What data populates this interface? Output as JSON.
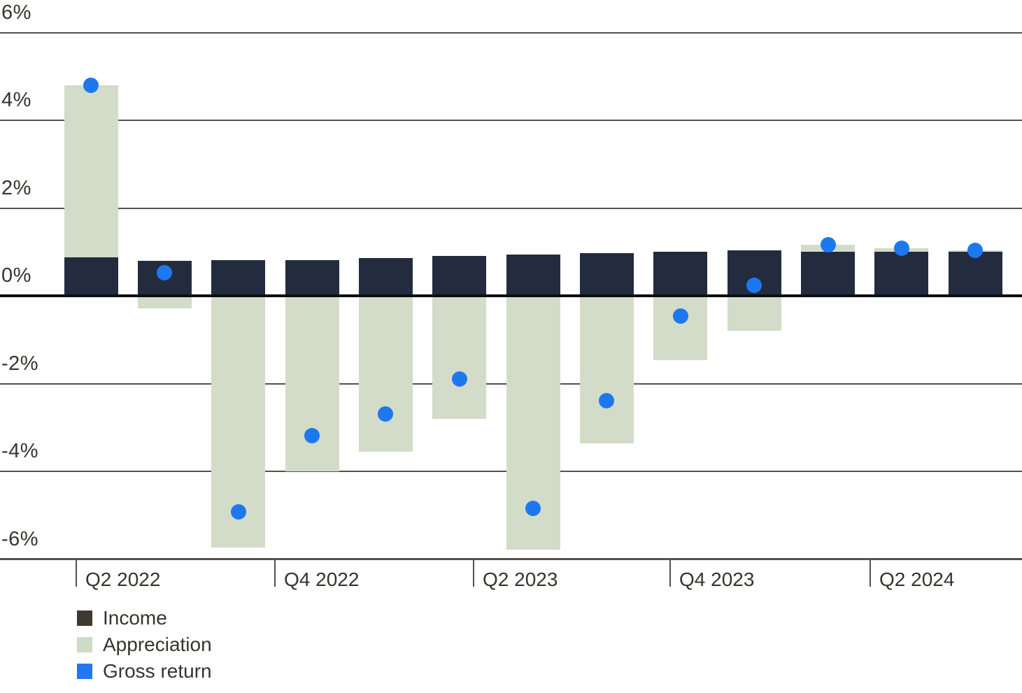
{
  "chart_data": {
    "type": "bar",
    "variant": "stacked-columns-with-scatter-overlay",
    "title": "",
    "xlabel": "",
    "ylabel": "",
    "x_tick_labels": [
      "Q2 2022",
      "Q4 2022",
      "Q2 2023",
      "Q4 2023",
      "Q2 2024"
    ],
    "y_tick_labels": [
      "6%",
      "4%",
      "2%",
      "0%",
      "-2%",
      "-4%",
      "-6%"
    ],
    "y_tick_values": [
      6,
      4,
      2,
      0,
      -2,
      -4,
      -6
    ],
    "ylim": [
      -6.0,
      6.7
    ],
    "bar_count": 13,
    "grid": "horizontal",
    "legend_position": "bottom-left",
    "series": [
      {
        "name": "Income",
        "type": "bar",
        "color": "#232c3e",
        "values": [
          0.87,
          0.8,
          0.81,
          0.82,
          0.86,
          0.91,
          0.94,
          0.98,
          1.01,
          1.03,
          1.01,
          1.01,
          1.01
        ]
      },
      {
        "name": "Appreciation",
        "type": "bar",
        "stacked_on": "Income",
        "color": "#d2dcc9",
        "values": [
          3.93,
          -0.28,
          -5.74,
          -4.0,
          -3.56,
          -2.81,
          -5.79,
          -3.37,
          -1.47,
          -0.79,
          0.15,
          0.07,
          0.02
        ]
      },
      {
        "name": "Gross return",
        "type": "scatter",
        "color": "#1d78f0",
        "values": [
          4.8,
          0.52,
          -4.93,
          -3.18,
          -2.7,
          -1.9,
          -4.85,
          -2.39,
          -0.46,
          0.24,
          1.16,
          1.08,
          1.03
        ]
      }
    ]
  },
  "legend": {
    "items": [
      {
        "label": "Income",
        "color": "#3e3a33",
        "shape": "square"
      },
      {
        "label": "Appreciation",
        "color": "#cddcc7",
        "shape": "square"
      },
      {
        "label": "Gross return",
        "color": "#2078f2",
        "shape": "square"
      }
    ]
  }
}
